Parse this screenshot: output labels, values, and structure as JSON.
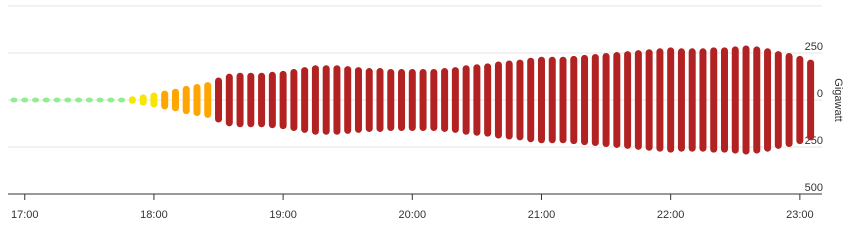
{
  "chart_data": {
    "type": "butterfly-bar",
    "y_axis_label": "Gigawatt",
    "categories": [
      null,
      "17:00",
      null,
      null,
      null,
      null,
      null,
      null,
      null,
      null,
      null,
      null,
      null,
      "18:00",
      null,
      null,
      null,
      null,
      null,
      null,
      null,
      null,
      null,
      null,
      null,
      "19:00",
      null,
      null,
      null,
      null,
      null,
      null,
      null,
      null,
      null,
      null,
      null,
      "20:00",
      null,
      null,
      null,
      null,
      null,
      null,
      null,
      null,
      null,
      null,
      null,
      "21:00",
      null,
      null,
      null,
      null,
      null,
      null,
      null,
      null,
      null,
      null,
      null,
      "22:00",
      null,
      null,
      null,
      null,
      null,
      null,
      null,
      null,
      null,
      null,
      null,
      "23:00",
      null
    ],
    "values": [
      3,
      3,
      3,
      3,
      2,
      2,
      2,
      2,
      2,
      2,
      10,
      20,
      30,
      40,
      50,
      60,
      75,
      85,
      95,
      120,
      140,
      145,
      145,
      145,
      150,
      155,
      165,
      175,
      185,
      185,
      185,
      180,
      175,
      170,
      170,
      165,
      165,
      165,
      165,
      165,
      170,
      175,
      185,
      190,
      195,
      205,
      210,
      215,
      225,
      230,
      230,
      230,
      235,
      240,
      245,
      250,
      255,
      260,
      265,
      270,
      275,
      280,
      275,
      275,
      275,
      280,
      280,
      285,
      290,
      285,
      275,
      260,
      250,
      235,
      215
    ],
    "colors": [
      "#90ee90",
      "#90ee90",
      "#90ee90",
      "#90ee90",
      "#90ee90",
      "#90ee90",
      "#90ee90",
      "#90ee90",
      "#90ee90",
      "#90ee90",
      "#90ee90",
      "#f7e600",
      "#f7e600",
      "#f7e600",
      "#ffa500",
      "#ffa500",
      "#ffa500",
      "#ffa500",
      "#ffa500",
      "#b22222",
      "#b22222",
      "#b22222",
      "#b22222",
      "#b22222",
      "#b22222",
      "#b22222",
      "#b22222",
      "#b22222",
      "#b22222",
      "#b22222",
      "#b22222",
      "#b22222",
      "#b22222",
      "#b22222",
      "#b22222",
      "#b22222",
      "#b22222",
      "#b22222",
      "#b22222",
      "#b22222",
      "#b22222",
      "#b22222",
      "#b22222",
      "#b22222",
      "#b22222",
      "#b22222",
      "#b22222",
      "#b22222",
      "#b22222",
      "#b22222",
      "#b22222",
      "#b22222",
      "#b22222",
      "#b22222",
      "#b22222",
      "#b22222",
      "#b22222",
      "#b22222",
      "#b22222",
      "#b22222",
      "#b22222",
      "#b22222",
      "#b22222",
      "#b22222",
      "#b22222",
      "#b22222",
      "#b22222",
      "#b22222",
      "#b22222",
      "#b22222",
      "#b22222",
      "#b22222",
      "#b22222",
      "#b22222",
      "#b22222"
    ],
    "ylim": [
      -500,
      500
    ],
    "yticks": [
      250,
      0,
      {
        "value": -250,
        "label": "250"
      },
      {
        "value": -500,
        "label": "500"
      }
    ],
    "grid": true
  }
}
